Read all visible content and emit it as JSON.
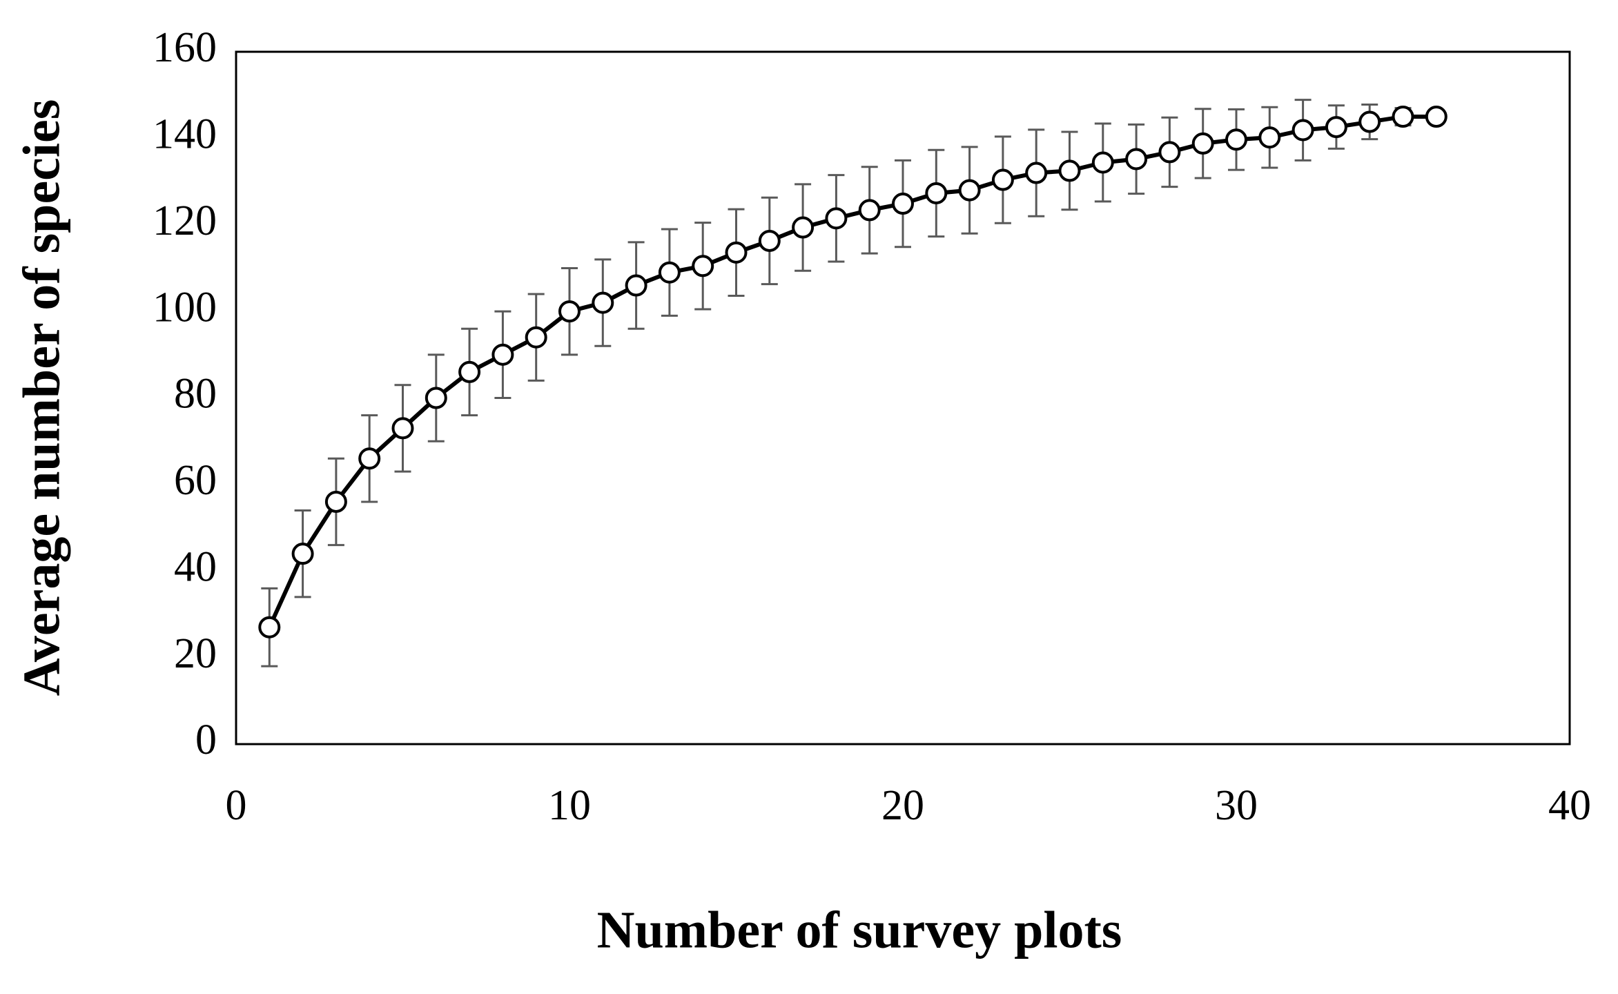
{
  "chart_data": {
    "type": "line",
    "xlabel": "Number of survey plots",
    "ylabel": "Average number of species",
    "x": [
      1,
      2,
      3,
      4,
      5,
      6,
      7,
      8,
      9,
      10,
      11,
      12,
      13,
      14,
      15,
      16,
      17,
      18,
      19,
      20,
      21,
      22,
      23,
      24,
      25,
      26,
      27,
      28,
      29,
      30,
      31,
      32,
      33,
      34,
      35,
      36
    ],
    "values": [
      27,
      44,
      56,
      66,
      73,
      80,
      86,
      90,
      94,
      100,
      102,
      106,
      109,
      110.5,
      113.6,
      116.3,
      119.4,
      121.5,
      123.4,
      124.9,
      127.3,
      128,
      130.4,
      132,
      132.5,
      134.4,
      135.2,
      136.8,
      138.8,
      139.7,
      140.2,
      141.9,
      142.6,
      143.8,
      145,
      145
    ],
    "errors": [
      9,
      10,
      10,
      10,
      10,
      10,
      10,
      10,
      10,
      10,
      10,
      10,
      10,
      10,
      10,
      10,
      10,
      10,
      10,
      10,
      10,
      10,
      10,
      10,
      9,
      9,
      8,
      8,
      8,
      7,
      7,
      7,
      5,
      4,
      2,
      1
    ],
    "color": "#000000",
    "error_color": "#595959",
    "marker_fill": "#ffffff",
    "xlim": [
      0,
      40
    ],
    "ylim": [
      0,
      160
    ],
    "xticks": [
      0,
      10,
      20,
      30,
      40
    ],
    "yticks": [
      0,
      20,
      40,
      60,
      80,
      100,
      120,
      140,
      160
    ],
    "grid": false
  }
}
